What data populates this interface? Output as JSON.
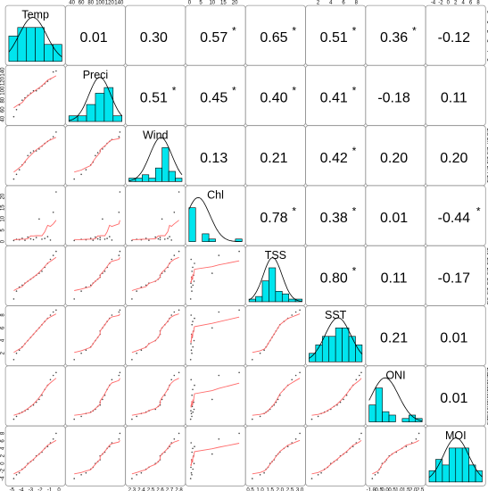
{
  "chart_data": {
    "type": "scatter-matrix",
    "variables": [
      "Temp",
      "Preci",
      "Wind",
      "Chl",
      "TSS",
      "SST",
      "ONI",
      "MOI"
    ],
    "significance_marker": "*",
    "correlations": [
      {
        "row": 0,
        "col": 1,
        "value": "0.01",
        "significant": false
      },
      {
        "row": 0,
        "col": 2,
        "value": "0.30",
        "significant": false
      },
      {
        "row": 0,
        "col": 3,
        "value": "0.57",
        "significant": true
      },
      {
        "row": 0,
        "col": 4,
        "value": "0.65",
        "significant": true
      },
      {
        "row": 0,
        "col": 5,
        "value": "0.51",
        "significant": true
      },
      {
        "row": 0,
        "col": 6,
        "value": "0.36",
        "significant": true
      },
      {
        "row": 0,
        "col": 7,
        "value": "-0.12",
        "significant": false
      },
      {
        "row": 1,
        "col": 2,
        "value": "0.51",
        "significant": true
      },
      {
        "row": 1,
        "col": 3,
        "value": "0.45",
        "significant": true
      },
      {
        "row": 1,
        "col": 4,
        "value": "0.40",
        "significant": true
      },
      {
        "row": 1,
        "col": 5,
        "value": "0.41",
        "significant": true
      },
      {
        "row": 1,
        "col": 6,
        "value": "-0.18",
        "significant": false
      },
      {
        "row": 1,
        "col": 7,
        "value": "0.11",
        "significant": false
      },
      {
        "row": 2,
        "col": 3,
        "value": "0.13",
        "significant": false
      },
      {
        "row": 2,
        "col": 4,
        "value": "0.21",
        "significant": false
      },
      {
        "row": 2,
        "col": 5,
        "value": "0.42",
        "significant": true
      },
      {
        "row": 2,
        "col": 6,
        "value": "0.20",
        "significant": false
      },
      {
        "row": 2,
        "col": 7,
        "value": "0.20",
        "significant": false
      },
      {
        "row": 3,
        "col": 4,
        "value": "0.78",
        "significant": true
      },
      {
        "row": 3,
        "col": 5,
        "value": "0.38",
        "significant": true
      },
      {
        "row": 3,
        "col": 6,
        "value": "0.01",
        "significant": false
      },
      {
        "row": 3,
        "col": 7,
        "value": "-0.44",
        "significant": true
      },
      {
        "row": 4,
        "col": 5,
        "value": "0.80",
        "significant": true
      },
      {
        "row": 4,
        "col": 6,
        "value": "0.11",
        "significant": false
      },
      {
        "row": 4,
        "col": 7,
        "value": "-0.17",
        "significant": false
      },
      {
        "row": 5,
        "col": 6,
        "value": "0.21",
        "significant": false
      },
      {
        "row": 5,
        "col": 7,
        "value": "0.01",
        "significant": false
      },
      {
        "row": 6,
        "col": 7,
        "value": "0.01",
        "significant": false
      }
    ],
    "ranges": [
      [
        -5.5,
        0.5
      ],
      [
        30,
        150
      ],
      [
        2.25,
        2.85
      ],
      [
        -1,
        24
      ],
      [
        0.35,
        3.2
      ],
      [
        0.3,
        9.2
      ],
      [
        -1.25,
        2.75
      ],
      [
        -5.5,
        9.5
      ]
    ],
    "axis_ticks": {
      "top": {
        "1": [
          "40",
          "60",
          "80",
          "100",
          "120",
          "140"
        ],
        "3": [
          "0",
          "5",
          "10",
          "15",
          "20"
        ],
        "5": [
          "2",
          "4",
          "6",
          "8"
        ],
        "7": [
          "-4",
          "-2",
          "0",
          "2",
          "4",
          "6",
          "8"
        ]
      },
      "left": {
        "1": [
          "40",
          "60",
          "80",
          "100",
          "120",
          "140"
        ],
        "3": [
          "0",
          "5",
          "10",
          "15",
          "20"
        ],
        "5": [
          "2",
          "4",
          "6",
          "8"
        ],
        "7": [
          "-4",
          "-2",
          "0",
          "2",
          "4",
          "6",
          "8"
        ]
      },
      "bottom": {
        "0": [
          "-5",
          "-4",
          "-3",
          "-2",
          "-1",
          "0"
        ],
        "2": [
          "2.3",
          "2.4",
          "2.5",
          "2.6",
          "2.7",
          "2.8"
        ],
        "4": [
          "0.5",
          "1.0",
          "1.5",
          "2.0",
          "2.5",
          "3.0"
        ],
        "6": [
          "-1.0",
          "-0.5",
          "0.0",
          "0.5",
          "1.0",
          "1.5",
          "2.0",
          "2.5"
        ]
      },
      "right": {
        "0": [
          "-5",
          "-4",
          "-3",
          "-2",
          "-1",
          "0"
        ],
        "2": [
          "2.3",
          "2.4",
          "2.5",
          "2.6",
          "2.7",
          "2.8"
        ],
        "4": [
          "0.5",
          "1.0",
          "1.5",
          "2.0",
          "2.5",
          "3.0"
        ],
        "6": [
          "-1.0",
          "-0.5",
          "0.0",
          "0.5",
          "1.0",
          "1.5",
          "2.0",
          "2.5"
        ]
      }
    },
    "histograms": [
      [
        3,
        4,
        4,
        4,
        2,
        2
      ],
      [
        1,
        1,
        3,
        5,
        6,
        1
      ],
      [
        1,
        1,
        2,
        1,
        4,
        10,
        3,
        1
      ],
      [
        13,
        0,
        3,
        1,
        0,
        0,
        0,
        1
      ],
      [
        1,
        2,
        8,
        13,
        4,
        3,
        1,
        1
      ],
      [
        1,
        2,
        3,
        3,
        4,
        4,
        3,
        2
      ],
      [
        5,
        10,
        3,
        2,
        0,
        1,
        2,
        1
      ],
      [
        2,
        4,
        3,
        6,
        6,
        6,
        3,
        2
      ]
    ],
    "series_points": [
      [
        -4.8,
        -4.5,
        -4.2,
        -3.9,
        -3.6,
        -3.3,
        -3.0,
        -2.7,
        -2.4,
        -2.1,
        -1.8,
        -1.5,
        -1.2,
        -0.9,
        -0.6,
        -0.3
      ],
      [
        45,
        60,
        70,
        80,
        85,
        90,
        95,
        100,
        100,
        105,
        110,
        115,
        120,
        125,
        140,
        142
      ],
      [
        2.3,
        2.35,
        2.4,
        2.45,
        2.48,
        2.55,
        2.58,
        2.6,
        2.6,
        2.62,
        2.65,
        2.68,
        2.7,
        2.72,
        2.75,
        2.8
      ],
      [
        0.5,
        1.0,
        0.8,
        1.5,
        0.6,
        2.0,
        1.2,
        0.9,
        1.8,
        10.0,
        1.1,
        1.4,
        2.2,
        0.7,
        13.0,
        22.0
      ],
      [
        0.6,
        1.0,
        1.2,
        1.3,
        1.4,
        1.5,
        1.6,
        1.7,
        1.8,
        1.9,
        2.0,
        2.2,
        2.4,
        2.6,
        2.8,
        3.0
      ],
      [
        1.0,
        2.0,
        2.5,
        3.0,
        3.5,
        4.0,
        4.5,
        5.0,
        5.5,
        6.0,
        6.5,
        7.0,
        7.5,
        8.0,
        8.5,
        8.8
      ],
      [
        -0.9,
        -0.7,
        -0.5,
        -0.4,
        -0.3,
        -0.2,
        0.0,
        0.1,
        0.3,
        0.5,
        0.8,
        1.2,
        1.5,
        1.9,
        2.2,
        2.4
      ],
      [
        -4.0,
        -3.0,
        -2.5,
        -1.5,
        -1.0,
        0.0,
        0.5,
        1.0,
        2.0,
        2.5,
        3.0,
        4.0,
        4.5,
        5.5,
        6.5,
        8.0
      ]
    ],
    "colors": {
      "histogram": "#00e5ee",
      "smooth": "#ff6a6a",
      "density": "#000000",
      "points": "#444444",
      "frame": "#999999"
    }
  }
}
